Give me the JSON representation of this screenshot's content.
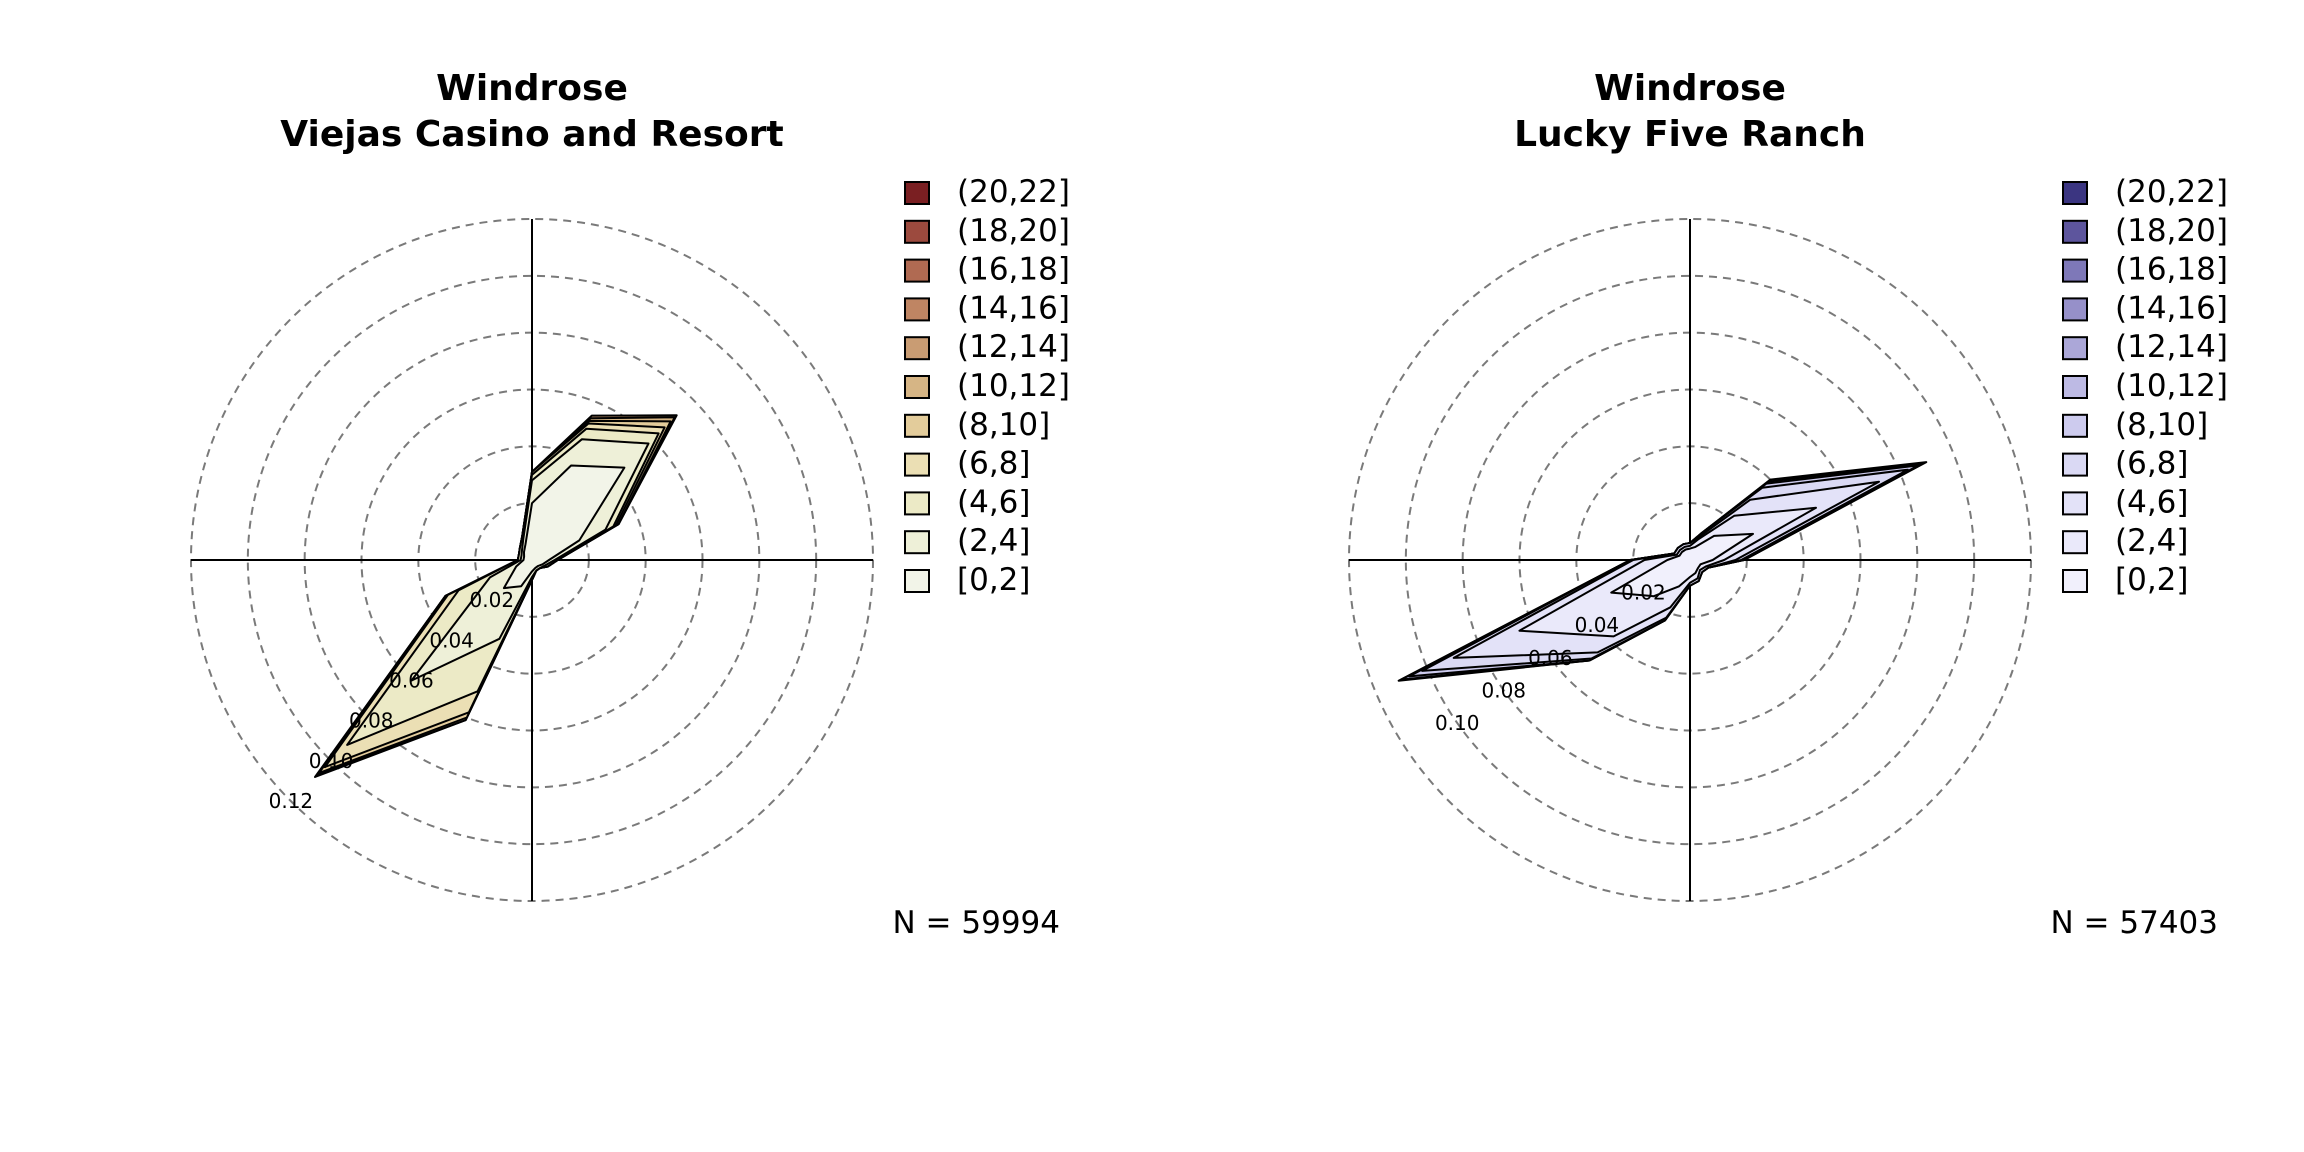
{
  "chart_data": [
    {
      "type": "windrose",
      "title": "Windrose",
      "subtitle": "Viejas Casino and Resort",
      "n_label": "N = 59994",
      "radial_ticks": [
        "0.02",
        "0.04",
        "0.06",
        "0.08",
        "0.10",
        "0.12"
      ],
      "radial_max": 0.12,
      "legend_title": "",
      "legend": [
        "(20,22]",
        "(18,20]",
        "(16,18]",
        "(14,16]",
        "(12,14]",
        "(10,12]",
        "(8,10]",
        "(6,8]",
        "(4,6]",
        "(2,4]",
        "[0,2]"
      ],
      "legend_colors": [
        "#7a1f22",
        "#9c4a3e",
        "#b06a52",
        "#bf8563",
        "#c99c73",
        "#d6b585",
        "#e3cc9b",
        "#ebdfb4",
        "#eceac6",
        "#eef0d8",
        "#f2f4e8"
      ],
      "directions_deg": [
        0,
        22.5,
        45,
        67.5,
        90,
        112.5,
        135,
        157.5,
        180,
        202.5,
        225,
        247.5,
        270,
        292.5,
        315,
        337.5
      ],
      "cumulative_bands": [
        {
          "bin": "[0,2]",
          "values": [
            0.02,
            0.036,
            0.046,
            0.018,
            0.006,
            0.004,
            0.003,
            0.003,
            0.004,
            0.01,
            0.014,
            0.006,
            0.003,
            0.003,
            0.004,
            0.006
          ]
        },
        {
          "bin": "(2,4]",
          "values": [
            0.028,
            0.046,
            0.058,
            0.028,
            0.008,
            0.005,
            0.004,
            0.004,
            0.006,
            0.03,
            0.06,
            0.016,
            0.004,
            0.004,
            0.005,
            0.008
          ]
        },
        {
          "bin": "(4,6]",
          "values": [
            0.03,
            0.05,
            0.063,
            0.031,
            0.009,
            0.006,
            0.004,
            0.004,
            0.007,
            0.05,
            0.092,
            0.028,
            0.005,
            0.005,
            0.006,
            0.009
          ]
        },
        {
          "bin": "(6,8]",
          "values": [
            0.031,
            0.052,
            0.066,
            0.032,
            0.009,
            0.006,
            0.004,
            0.004,
            0.007,
            0.058,
            0.103,
            0.032,
            0.005,
            0.005,
            0.006,
            0.009
          ]
        },
        {
          "bin": "(8,10]",
          "values": [
            0.031,
            0.053,
            0.069,
            0.033,
            0.009,
            0.006,
            0.004,
            0.004,
            0.007,
            0.06,
            0.106,
            0.033,
            0.005,
            0.005,
            0.006,
            0.009
          ]
        },
        {
          "bin": "(10,12]",
          "values": [
            0.031,
            0.054,
            0.071,
            0.033,
            0.009,
            0.006,
            0.004,
            0.004,
            0.007,
            0.061,
            0.107,
            0.033,
            0.005,
            0.005,
            0.006,
            0.009
          ]
        },
        {
          "bin": "(12,14]",
          "values": [
            0.031,
            0.055,
            0.072,
            0.033,
            0.009,
            0.006,
            0.004,
            0.004,
            0.007,
            0.061,
            0.108,
            0.033,
            0.005,
            0.005,
            0.006,
            0.009
          ]
        }
      ],
      "palette": "yellow-brown"
    },
    {
      "type": "windrose",
      "title": "Windrose",
      "subtitle": "Lucky Five Ranch",
      "n_label": "N = 57403",
      "radial_ticks": [
        "0.02",
        "0.04",
        "0.06",
        "0.08",
        "0.10"
      ],
      "radial_max": 0.12,
      "legend_title": "",
      "legend": [
        "(20,22]",
        "(18,20]",
        "(16,18]",
        "(14,16]",
        "(12,14]",
        "(10,12]",
        "(8,10]",
        "(6,8]",
        "(4,6]",
        "(2,4]",
        "[0,2]"
      ],
      "legend_colors": [
        "#3b3581",
        "#5d559d",
        "#7e78b8",
        "#9690c9",
        "#aba7d8",
        "#bdbae4",
        "#cdcbee",
        "#dad9f4",
        "#e3e2f8",
        "#eae9fa",
        "#f1f0fc"
      ],
      "directions_deg": [
        0,
        22.5,
        45,
        67.5,
        90,
        112.5,
        135,
        157.5,
        180,
        202.5,
        225,
        247.5,
        270,
        292.5,
        315,
        337.5
      ],
      "cumulative_bands": [
        {
          "bin": "[0,2]",
          "values": [
            0.004,
            0.005,
            0.012,
            0.024,
            0.008,
            0.004,
            0.004,
            0.005,
            0.006,
            0.01,
            0.018,
            0.03,
            0.008,
            0.004,
            0.004,
            0.004
          ]
        },
        {
          "bin": "(2,4]",
          "values": [
            0.005,
            0.008,
            0.022,
            0.048,
            0.012,
            0.006,
            0.005,
            0.007,
            0.008,
            0.018,
            0.038,
            0.065,
            0.016,
            0.005,
            0.005,
            0.005
          ]
        },
        {
          "bin": "(4,6]",
          "values": [
            0.006,
            0.009,
            0.03,
            0.072,
            0.016,
            0.007,
            0.006,
            0.008,
            0.009,
            0.022,
            0.046,
            0.09,
            0.02,
            0.006,
            0.006,
            0.006
          ]
        },
        {
          "bin": "(6,8]",
          "values": [
            0.006,
            0.01,
            0.036,
            0.083,
            0.018,
            0.007,
            0.006,
            0.008,
            0.009,
            0.023,
            0.049,
            0.102,
            0.021,
            0.006,
            0.006,
            0.006
          ]
        },
        {
          "bin": "(8,10]",
          "values": [
            0.006,
            0.01,
            0.038,
            0.087,
            0.019,
            0.007,
            0.006,
            0.008,
            0.009,
            0.023,
            0.05,
            0.107,
            0.021,
            0.006,
            0.006,
            0.006
          ]
        },
        {
          "bin": "(10,12]",
          "values": [
            0.006,
            0.01,
            0.039,
            0.089,
            0.019,
            0.007,
            0.006,
            0.008,
            0.009,
            0.023,
            0.05,
            0.11,
            0.021,
            0.006,
            0.006,
            0.006
          ]
        },
        {
          "bin": "(12,14]",
          "values": [
            0.006,
            0.01,
            0.04,
            0.09,
            0.019,
            0.007,
            0.006,
            0.008,
            0.009,
            0.023,
            0.05,
            0.111,
            0.021,
            0.006,
            0.006,
            0.006
          ]
        }
      ],
      "palette": "lavender"
    }
  ]
}
